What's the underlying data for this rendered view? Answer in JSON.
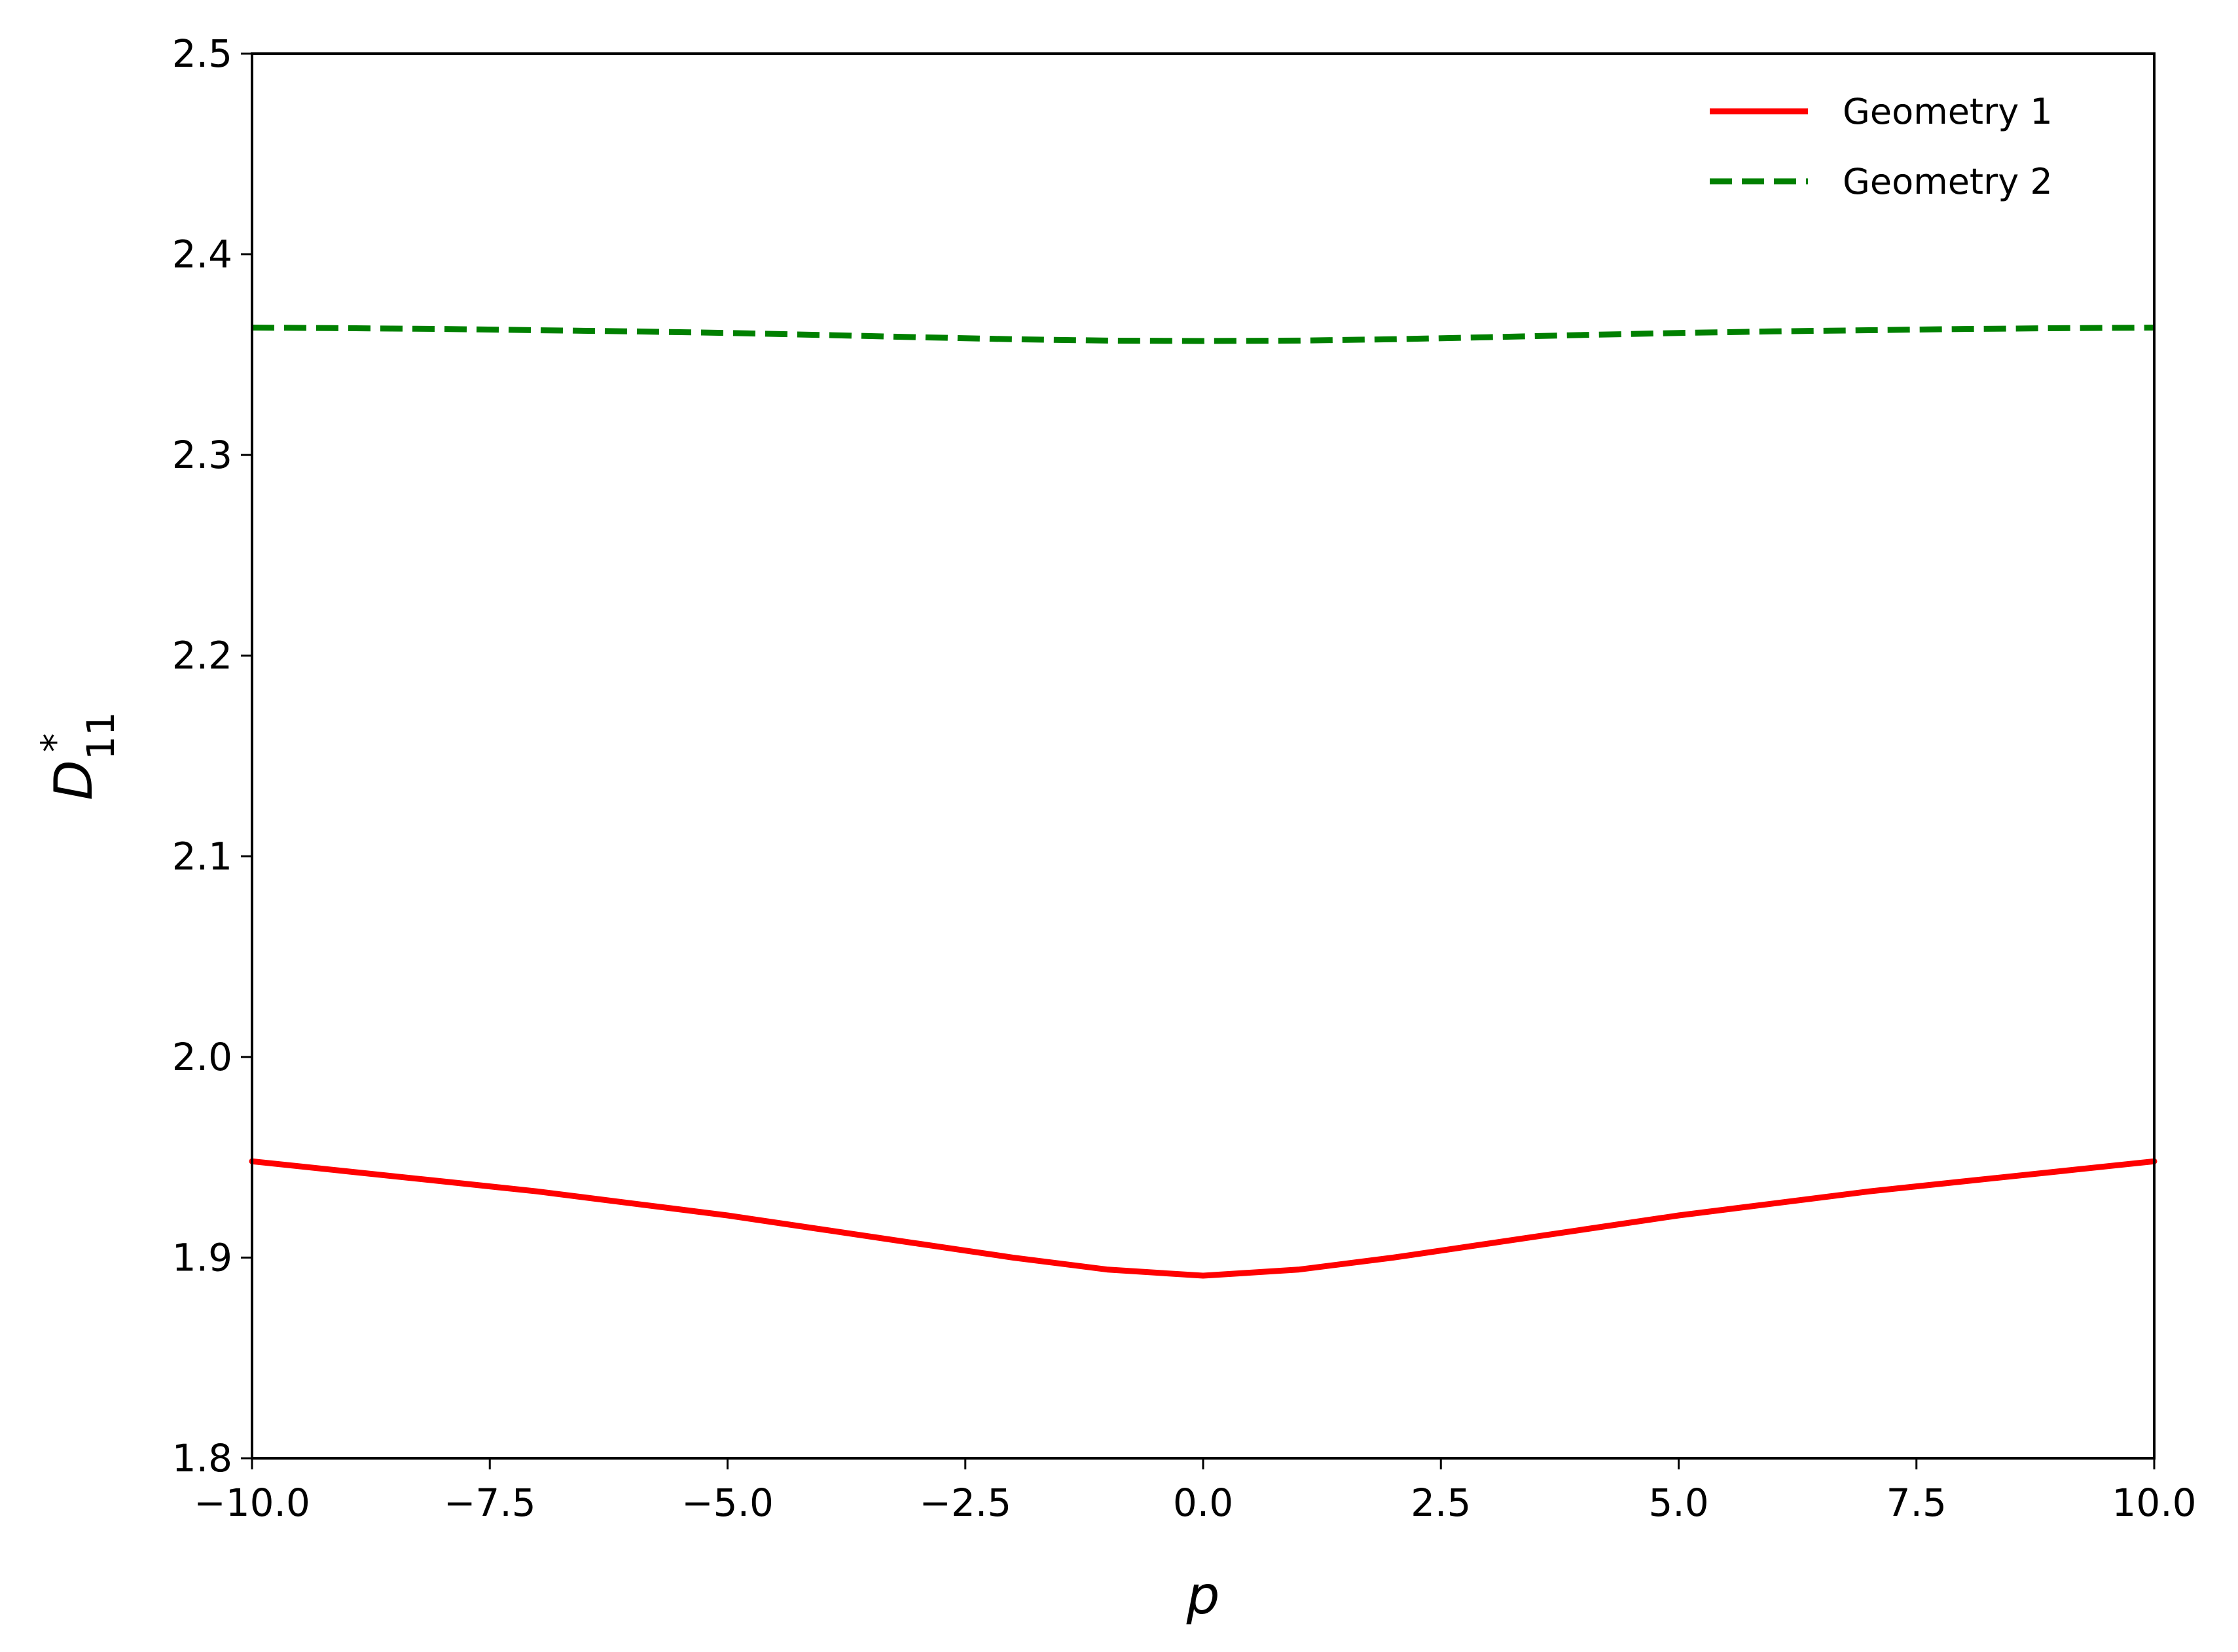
{
  "chart_data": {
    "type": "line",
    "title": "",
    "xlabel": "p",
    "ylabel": {
      "base": "D",
      "superscript": "*",
      "subscript": "11"
    },
    "xlim": [
      -10,
      10
    ],
    "ylim": [
      1.8,
      2.5
    ],
    "xticks": [
      -10.0,
      -7.5,
      -5.0,
      -2.5,
      0.0,
      2.5,
      5.0,
      7.5,
      10.0
    ],
    "xtick_labels": [
      "−10.0",
      "−7.5",
      "−5.0",
      "−2.5",
      "0.0",
      "2.5",
      "5.0",
      "7.5",
      "10.0"
    ],
    "yticks": [
      1.8,
      1.9,
      2.0,
      2.1,
      2.2,
      2.3,
      2.4,
      2.5
    ],
    "ytick_labels": [
      "1.8",
      "1.9",
      "2.0",
      "2.1",
      "2.2",
      "2.3",
      "2.4",
      "2.5"
    ],
    "grid": false,
    "legend": {
      "placement": "top-right",
      "frame": false
    },
    "series": [
      {
        "name": "Geometry 1",
        "color": "#ff0000",
        "style": "solid",
        "x": [
          -10,
          -9,
          -8,
          -7,
          -6,
          -5,
          -4,
          -3,
          -2,
          -1,
          0,
          1,
          2,
          3,
          4,
          5,
          6,
          7,
          8,
          9,
          10
        ],
        "y": [
          1.948,
          1.943,
          1.938,
          1.933,
          1.927,
          1.921,
          1.914,
          1.907,
          1.9,
          1.894,
          1.891,
          1.894,
          1.9,
          1.907,
          1.914,
          1.921,
          1.927,
          1.933,
          1.938,
          1.943,
          1.948
        ]
      },
      {
        "name": "Geometry 2",
        "color": "#008000",
        "style": "dashed",
        "x": [
          -10,
          -9,
          -8,
          -7,
          -6,
          -5,
          -4,
          -3,
          -2,
          -1,
          0,
          1,
          2,
          3,
          4,
          5,
          6,
          7,
          8,
          9,
          10
        ],
        "y": [
          2.3635,
          2.3632,
          2.3628,
          2.3622,
          2.3616,
          2.3608,
          2.3598,
          2.3587,
          2.3577,
          2.357,
          2.3568,
          2.357,
          2.3577,
          2.3587,
          2.3598,
          2.3608,
          2.3616,
          2.3622,
          2.3628,
          2.3632,
          2.3635
        ]
      }
    ]
  }
}
